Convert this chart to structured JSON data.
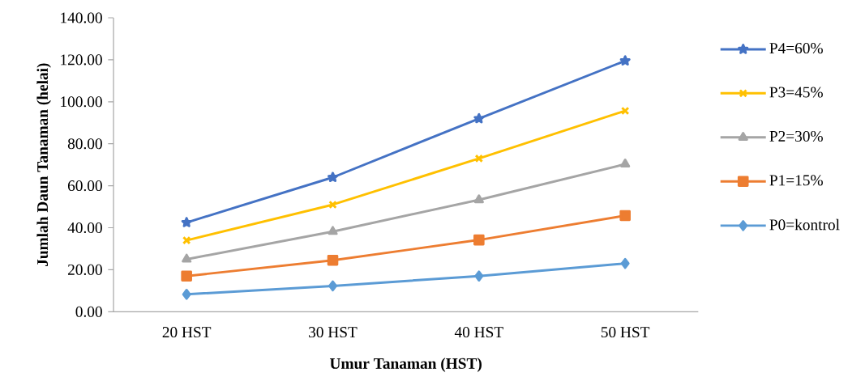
{
  "chart_data": {
    "type": "line",
    "xlabel": "Umur Tanaman (HST)",
    "ylabel": "Jumlah Daun Tanaman (helai)",
    "categories": [
      "20 HST",
      "30 HST",
      "40 HST",
      "50 HST"
    ],
    "series": [
      {
        "name": "P4=60%",
        "color": "#4472c4",
        "marker": "star",
        "values": [
          42.5,
          64.0,
          92.0,
          119.5
        ]
      },
      {
        "name": "P3=45%",
        "color": "#ffc000",
        "marker": "cross",
        "values": [
          34.0,
          51.0,
          73.0,
          95.7
        ]
      },
      {
        "name": "P2=30%",
        "color": "#a5a5a5",
        "marker": "triangle",
        "values": [
          25.0,
          38.2,
          53.3,
          70.3
        ]
      },
      {
        "name": "P1=15%",
        "color": "#ed7d31",
        "marker": "square",
        "values": [
          17.0,
          24.5,
          34.2,
          45.8
        ]
      },
      {
        "name": "P0=kontrol",
        "color": "#5b9bd5",
        "marker": "diamond",
        "values": [
          8.3,
          12.3,
          17.0,
          23.0
        ]
      }
    ],
    "ylim": [
      0,
      140
    ],
    "yticks": [
      {
        "value": 0,
        "label": "0.00"
      },
      {
        "value": 20,
        "label": "20.00"
      },
      {
        "value": 40,
        "label": "40.00"
      },
      {
        "value": 60,
        "label": "60.00"
      },
      {
        "value": 80,
        "label": "80.00"
      },
      {
        "value": 100,
        "label": "100.00"
      },
      {
        "value": 120,
        "label": "120.00"
      },
      {
        "value": 140,
        "label": "140.00"
      }
    ],
    "legend": "right"
  }
}
